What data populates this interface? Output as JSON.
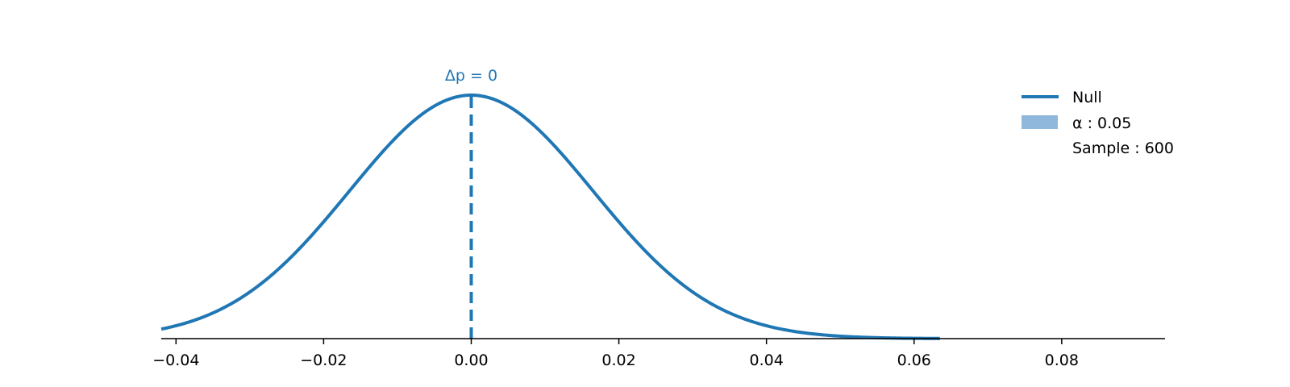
{
  "chart_data": {
    "type": "line",
    "title": "",
    "xlabel": "",
    "ylabel": "",
    "xlim": [
      -0.042,
      0.094
    ],
    "ylim": [
      0,
      1.0
    ],
    "x_ticks": [
      "−0.04",
      "−0.02",
      "0.00",
      "0.02",
      "0.04",
      "0.06",
      "0.08"
    ],
    "x_tick_values": [
      -0.04,
      -0.02,
      0.0,
      0.02,
      0.04,
      0.06,
      0.08
    ],
    "y_axis_visible": false,
    "grid": false,
    "legend_position": "top-right",
    "series": [
      {
        "name": "Null",
        "distribution": "normal",
        "mean": 0.0,
        "std": 0.0165,
        "x_range": [
          -0.042,
          0.0635
        ],
        "color": "#1f77b4"
      }
    ],
    "legend": [
      {
        "key": "null",
        "type": "line",
        "label": "Null",
        "color": "#1f77b4"
      },
      {
        "key": "alpha",
        "type": "patch",
        "label": "α : 0.05",
        "color": "#8fb8dc"
      },
      {
        "key": "sample",
        "type": "none",
        "label": "Sample : 600"
      }
    ],
    "annotations": [
      {
        "type": "vline",
        "x": 0.0,
        "style": "dashed",
        "color": "#1f77b4",
        "label": "Δp = 0"
      }
    ]
  }
}
